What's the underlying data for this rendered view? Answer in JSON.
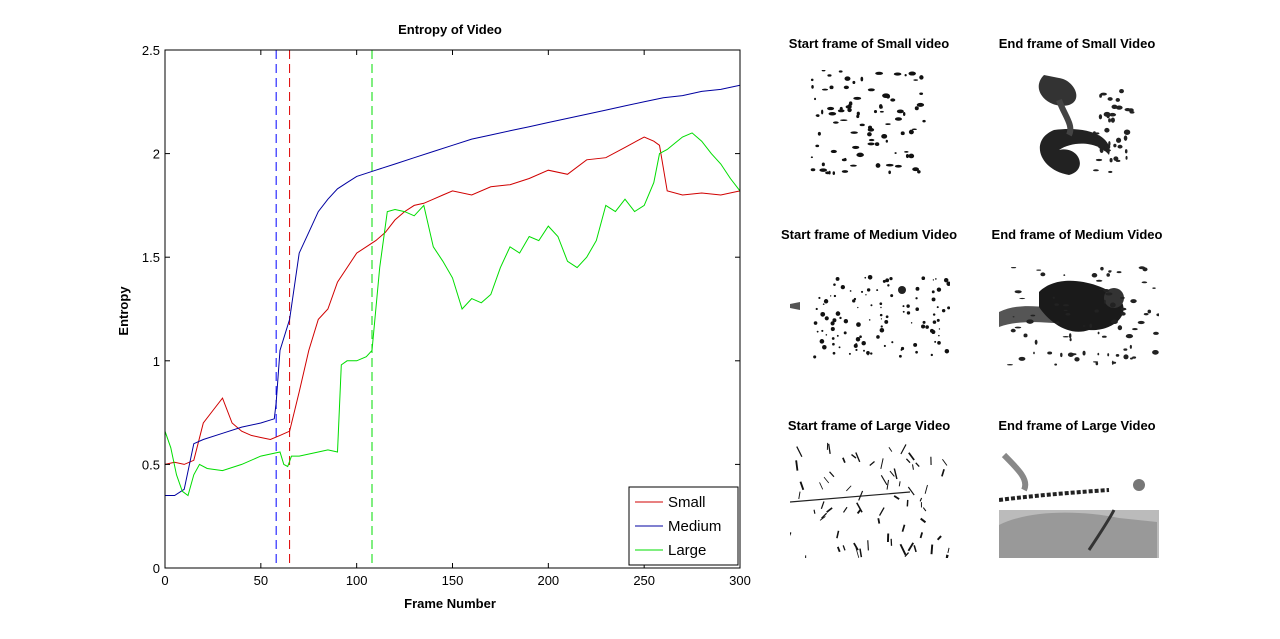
{
  "chart_data": {
    "type": "line",
    "title": "Entropy of Video",
    "xlabel": "Frame Number",
    "ylabel": "Entropy",
    "xlim": [
      0,
      300
    ],
    "ylim": [
      0,
      2.5
    ],
    "xticks": [
      0,
      50,
      100,
      150,
      200,
      250,
      300
    ],
    "yticks": [
      0,
      0.5,
      1,
      1.5,
      2,
      2.5
    ],
    "ytick_labels": [
      "0",
      "0.5",
      "1",
      "1.5",
      "2",
      "2.5"
    ],
    "grid": false,
    "legend_position": "bottom-right",
    "series": [
      {
        "name": "Small",
        "color": "#d00000",
        "x": [
          0,
          5,
          10,
          15,
          20,
          25,
          30,
          35,
          40,
          45,
          50,
          55,
          60,
          65,
          70,
          75,
          80,
          85,
          90,
          95,
          100,
          105,
          110,
          115,
          120,
          125,
          130,
          135,
          140,
          145,
          150,
          160,
          170,
          180,
          190,
          200,
          210,
          220,
          230,
          240,
          250,
          255,
          258,
          262,
          270,
          280,
          290,
          300
        ],
        "y": [
          0.5,
          0.51,
          0.5,
          0.52,
          0.7,
          0.76,
          0.82,
          0.7,
          0.66,
          0.64,
          0.63,
          0.62,
          0.64,
          0.66,
          0.85,
          1.05,
          1.2,
          1.25,
          1.38,
          1.45,
          1.52,
          1.55,
          1.58,
          1.62,
          1.68,
          1.72,
          1.75,
          1.76,
          1.78,
          1.8,
          1.82,
          1.8,
          1.84,
          1.85,
          1.88,
          1.92,
          1.9,
          1.97,
          1.98,
          2.03,
          2.08,
          2.06,
          2.04,
          1.82,
          1.8,
          1.81,
          1.8,
          1.82
        ]
      },
      {
        "name": "Medium",
        "color": "#0000a0",
        "x": [
          0,
          5,
          10,
          15,
          20,
          30,
          40,
          50,
          57,
          58,
          60,
          65,
          70,
          75,
          80,
          85,
          90,
          95,
          100,
          110,
          120,
          130,
          140,
          150,
          160,
          170,
          180,
          190,
          200,
          210,
          220,
          230,
          240,
          250,
          260,
          270,
          280,
          290,
          300
        ],
        "y": [
          0.35,
          0.35,
          0.38,
          0.6,
          0.62,
          0.65,
          0.68,
          0.7,
          0.72,
          0.8,
          1.05,
          1.2,
          1.52,
          1.62,
          1.72,
          1.78,
          1.83,
          1.86,
          1.89,
          1.92,
          1.95,
          1.98,
          2.01,
          2.04,
          2.07,
          2.09,
          2.11,
          2.13,
          2.15,
          2.17,
          2.19,
          2.21,
          2.23,
          2.25,
          2.27,
          2.28,
          2.3,
          2.31,
          2.33
        ]
      },
      {
        "name": "Large",
        "color": "#00dd00",
        "x": [
          0,
          3,
          6,
          9,
          12,
          15,
          18,
          22,
          30,
          40,
          50,
          60,
          62,
          64,
          66,
          70,
          80,
          85,
          90,
          92,
          95,
          100,
          105,
          108,
          112,
          116,
          120,
          125,
          130,
          135,
          140,
          145,
          150,
          155,
          160,
          165,
          170,
          175,
          180,
          185,
          190,
          195,
          200,
          205,
          210,
          215,
          220,
          225,
          230,
          235,
          240,
          245,
          250,
          255,
          258,
          262,
          266,
          270,
          275,
          280,
          285,
          290,
          295,
          300
        ],
        "y": [
          0.66,
          0.58,
          0.45,
          0.37,
          0.35,
          0.45,
          0.5,
          0.48,
          0.47,
          0.5,
          0.54,
          0.56,
          0.5,
          0.49,
          0.54,
          0.54,
          0.56,
          0.57,
          0.56,
          0.98,
          1.0,
          1.0,
          1.02,
          1.05,
          1.45,
          1.72,
          1.73,
          1.72,
          1.7,
          1.75,
          1.55,
          1.48,
          1.4,
          1.25,
          1.3,
          1.28,
          1.32,
          1.45,
          1.55,
          1.52,
          1.6,
          1.58,
          1.65,
          1.6,
          1.48,
          1.45,
          1.5,
          1.58,
          1.75,
          1.72,
          1.78,
          1.72,
          1.75,
          1.86,
          2.0,
          2.02,
          2.05,
          2.08,
          2.1,
          2.06,
          2.0,
          1.95,
          1.88,
          1.82
        ]
      }
    ],
    "vertical_lines": [
      {
        "x": 58,
        "color": "#0000ff",
        "style": "dashed"
      },
      {
        "x": 65,
        "color": "#dd0000",
        "style": "dashed"
      },
      {
        "x": 108,
        "color": "#00dd00",
        "style": "dashed"
      }
    ]
  },
  "thumbnails": [
    {
      "title": "Start frame of Small video",
      "image": "sparse-dark-specks"
    },
    {
      "title": "End frame of Small Video",
      "image": "dark-swirling-plumes"
    },
    {
      "title": "Start frame of Medium Video",
      "image": "scattered-dots"
    },
    {
      "title": "End frame of Medium Video",
      "image": "dense-dark-cloud"
    },
    {
      "title": "Start frame of Large Video",
      "image": "thin-streaks"
    },
    {
      "title": "End frame of Large Video",
      "image": "grey-smears"
    }
  ]
}
